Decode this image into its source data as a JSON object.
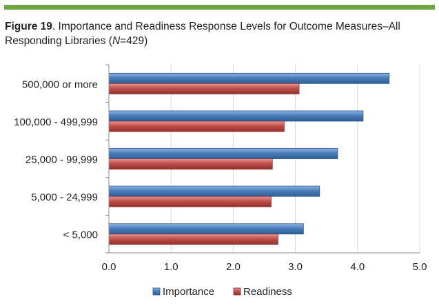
{
  "caption": {
    "label": "Figure 19",
    "text": ". Importance and Readiness Response Levels for Outcome Measures–All Responding Libraries (",
    "n_symbol": "N",
    "n_value": "=429)"
  },
  "colors": {
    "top_bar": "#6da640",
    "importance": "#4a7ebb",
    "readiness": "#c0504d",
    "grid": "#d9d9d9",
    "axis": "#8c8c8c",
    "label_text": "#231f20"
  },
  "chart_data": {
    "type": "bar",
    "orientation": "horizontal",
    "title": "",
    "xlabel": "",
    "ylabel": "",
    "categories": [
      "500,000 or more",
      "100,000 - 499,999",
      "25,000 - 99,999",
      "5,000 - 24,999",
      "< 5,000"
    ],
    "series": [
      {
        "name": "Importance",
        "color": "#4a7ebb",
        "values": [
          4.51,
          4.09,
          3.68,
          3.39,
          3.13
        ]
      },
      {
        "name": "Readiness",
        "color": "#c0504d",
        "values": [
          3.06,
          2.82,
          2.63,
          2.61,
          2.72
        ]
      }
    ],
    "xlim": [
      0,
      5
    ],
    "xticks": [
      "0.0",
      "1.0",
      "2.0",
      "3.0",
      "4.0",
      "5.0"
    ],
    "grid": "vertical",
    "legend": "bottom"
  }
}
